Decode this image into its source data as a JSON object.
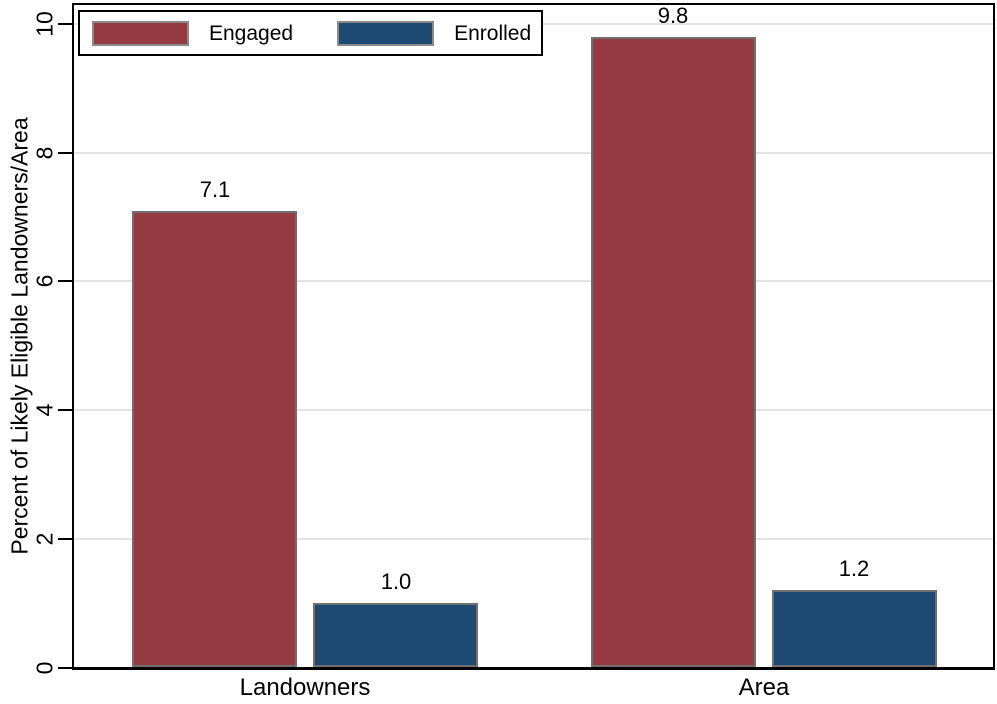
{
  "chart_data": {
    "type": "bar",
    "title": "",
    "categories": [
      "Landowners",
      "Area"
    ],
    "series": [
      {
        "name": "Engaged",
        "color": "#943A40",
        "values": [
          7.1,
          9.8
        ],
        "labels": [
          "7.1",
          "9.8"
        ]
      },
      {
        "name": "Enrolled",
        "color": "#1C4A72",
        "values": [
          1.0,
          1.2
        ],
        "labels": [
          "1.0",
          "1.2"
        ]
      }
    ],
    "xlabel": "",
    "ylabel": "Percent of Likely Eligible Landowners/Area",
    "ylim": [
      0,
      10
    ],
    "yticks": [
      0,
      2,
      4,
      6,
      8,
      10
    ],
    "ytick_labels": [
      "0",
      "2",
      "4",
      "6",
      "8",
      "10"
    ],
    "grid": true,
    "legend_position": "top-left",
    "bar_labels_shown": true
  },
  "palette": {
    "background": "#ffffff",
    "axis": "#000000",
    "gridline": "#e4e4e4",
    "bar_border": "#707070",
    "legend_border": "#000000",
    "text": "#000000"
  }
}
